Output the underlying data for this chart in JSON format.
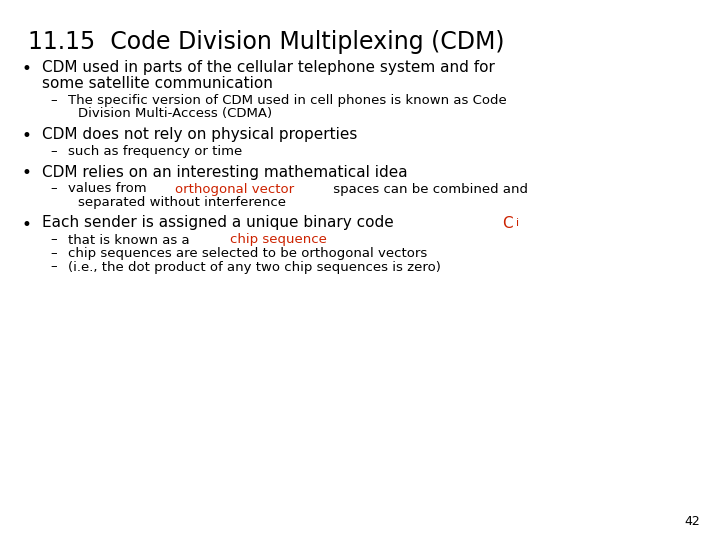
{
  "title": "11.15  Code Division Multiplexing (CDM)",
  "background_color": "#ffffff",
  "title_color": "#000000",
  "title_fontsize": 17,
  "body_fontsize": 11,
  "sub_fontsize": 9.5,
  "page_number": "42",
  "content": [
    {
      "type": "bullet",
      "lines": [
        {
          "parts": [
            {
              "text": "CDM used in parts of the cellular telephone system and for",
              "color": "#000000"
            }
          ]
        },
        {
          "parts": [
            {
              "text": "some satellite communication",
              "color": "#000000"
            }
          ],
          "indent2": true
        }
      ]
    },
    {
      "type": "sub",
      "lines": [
        {
          "parts": [
            {
              "text": "The specific version of CDM used in cell phones is known as Code",
              "color": "#000000"
            }
          ]
        },
        {
          "parts": [
            {
              "text": "Division Multi-Access (CDMA)",
              "color": "#000000"
            }
          ],
          "indent2": true
        }
      ]
    },
    {
      "type": "gap_small"
    },
    {
      "type": "bullet",
      "lines": [
        {
          "parts": [
            {
              "text": "CDM does not rely on physical properties",
              "color": "#000000"
            }
          ]
        }
      ]
    },
    {
      "type": "sub",
      "lines": [
        {
          "parts": [
            {
              "text": "such as frequency or time",
              "color": "#000000"
            }
          ]
        }
      ]
    },
    {
      "type": "gap_small"
    },
    {
      "type": "bullet",
      "lines": [
        {
          "parts": [
            {
              "text": "CDM relies on an interesting mathematical idea",
              "color": "#000000"
            }
          ]
        }
      ]
    },
    {
      "type": "sub",
      "lines": [
        {
          "parts": [
            {
              "text": "values from ",
              "color": "#000000"
            },
            {
              "text": "orthogonal vector",
              "color": "#cc2200"
            },
            {
              "text": " spaces can be combined and",
              "color": "#000000"
            }
          ]
        },
        {
          "parts": [
            {
              "text": "separated without interference",
              "color": "#000000"
            }
          ],
          "indent2": true
        }
      ]
    },
    {
      "type": "gap_small"
    },
    {
      "type": "bullet",
      "lines": [
        {
          "parts": [
            {
              "text": "Each sender is assigned a unique binary code ",
              "color": "#000000"
            },
            {
              "text": "C",
              "color": "#cc2200"
            },
            {
              "text": "i",
              "color": "#cc2200",
              "subscript": true
            }
          ]
        }
      ]
    },
    {
      "type": "sub",
      "lines": [
        {
          "parts": [
            {
              "text": "that is known as a ",
              "color": "#000000"
            },
            {
              "text": "chip sequence",
              "color": "#cc2200"
            }
          ]
        }
      ]
    },
    {
      "type": "sub",
      "lines": [
        {
          "parts": [
            {
              "text": "chip sequences are selected to be orthogonal vectors",
              "color": "#000000"
            }
          ]
        }
      ]
    },
    {
      "type": "sub",
      "lines": [
        {
          "parts": [
            {
              "text": "(i.e., the dot product of any two chip sequences is zero)",
              "color": "#000000"
            }
          ]
        }
      ]
    }
  ]
}
